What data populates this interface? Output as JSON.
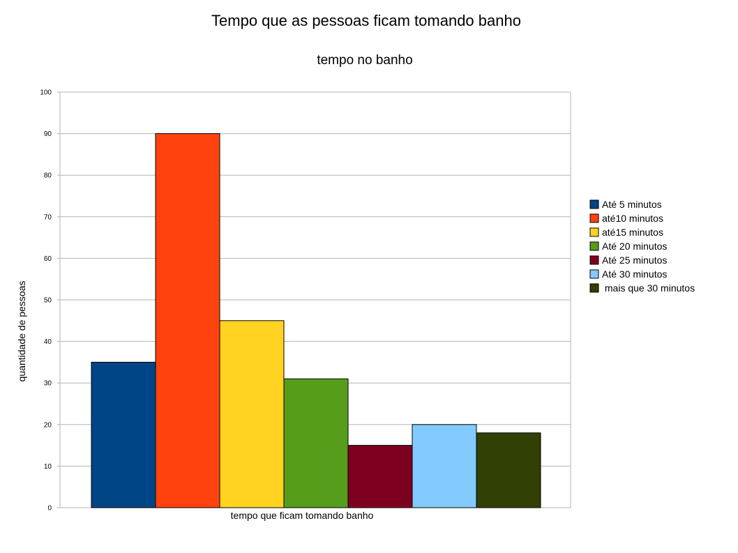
{
  "chart_data": {
    "type": "bar",
    "title": "Tempo que as pessoas ficam tomando banho",
    "subtitle": "tempo no banho",
    "xlabel": "tempo que ficam tomando banho",
    "ylabel": "quantidade de pessoas",
    "ylim": [
      0,
      100
    ],
    "yticks": [
      0,
      10,
      20,
      30,
      40,
      50,
      60,
      70,
      80,
      90,
      100
    ],
    "grid": true,
    "legend_position": "right",
    "series": [
      {
        "name": "Até 5 minutos",
        "value": 35,
        "color": "#004586"
      },
      {
        "name": "até10 minutos",
        "value": 90,
        "color": "#ff420e"
      },
      {
        "name": "até15 minutos",
        "value": 45,
        "color": "#ffd320"
      },
      {
        "name": "Até 20 minutos",
        "value": 31,
        "color": "#579d1c"
      },
      {
        "name": "Até 25 minutos",
        "value": 15,
        "color": "#7e0021"
      },
      {
        "name": "Até 30 minutos",
        "value": 20,
        "color": "#83caff"
      },
      {
        "name": " mais que 30 minutos",
        "value": 18,
        "color": "#314004"
      }
    ]
  }
}
